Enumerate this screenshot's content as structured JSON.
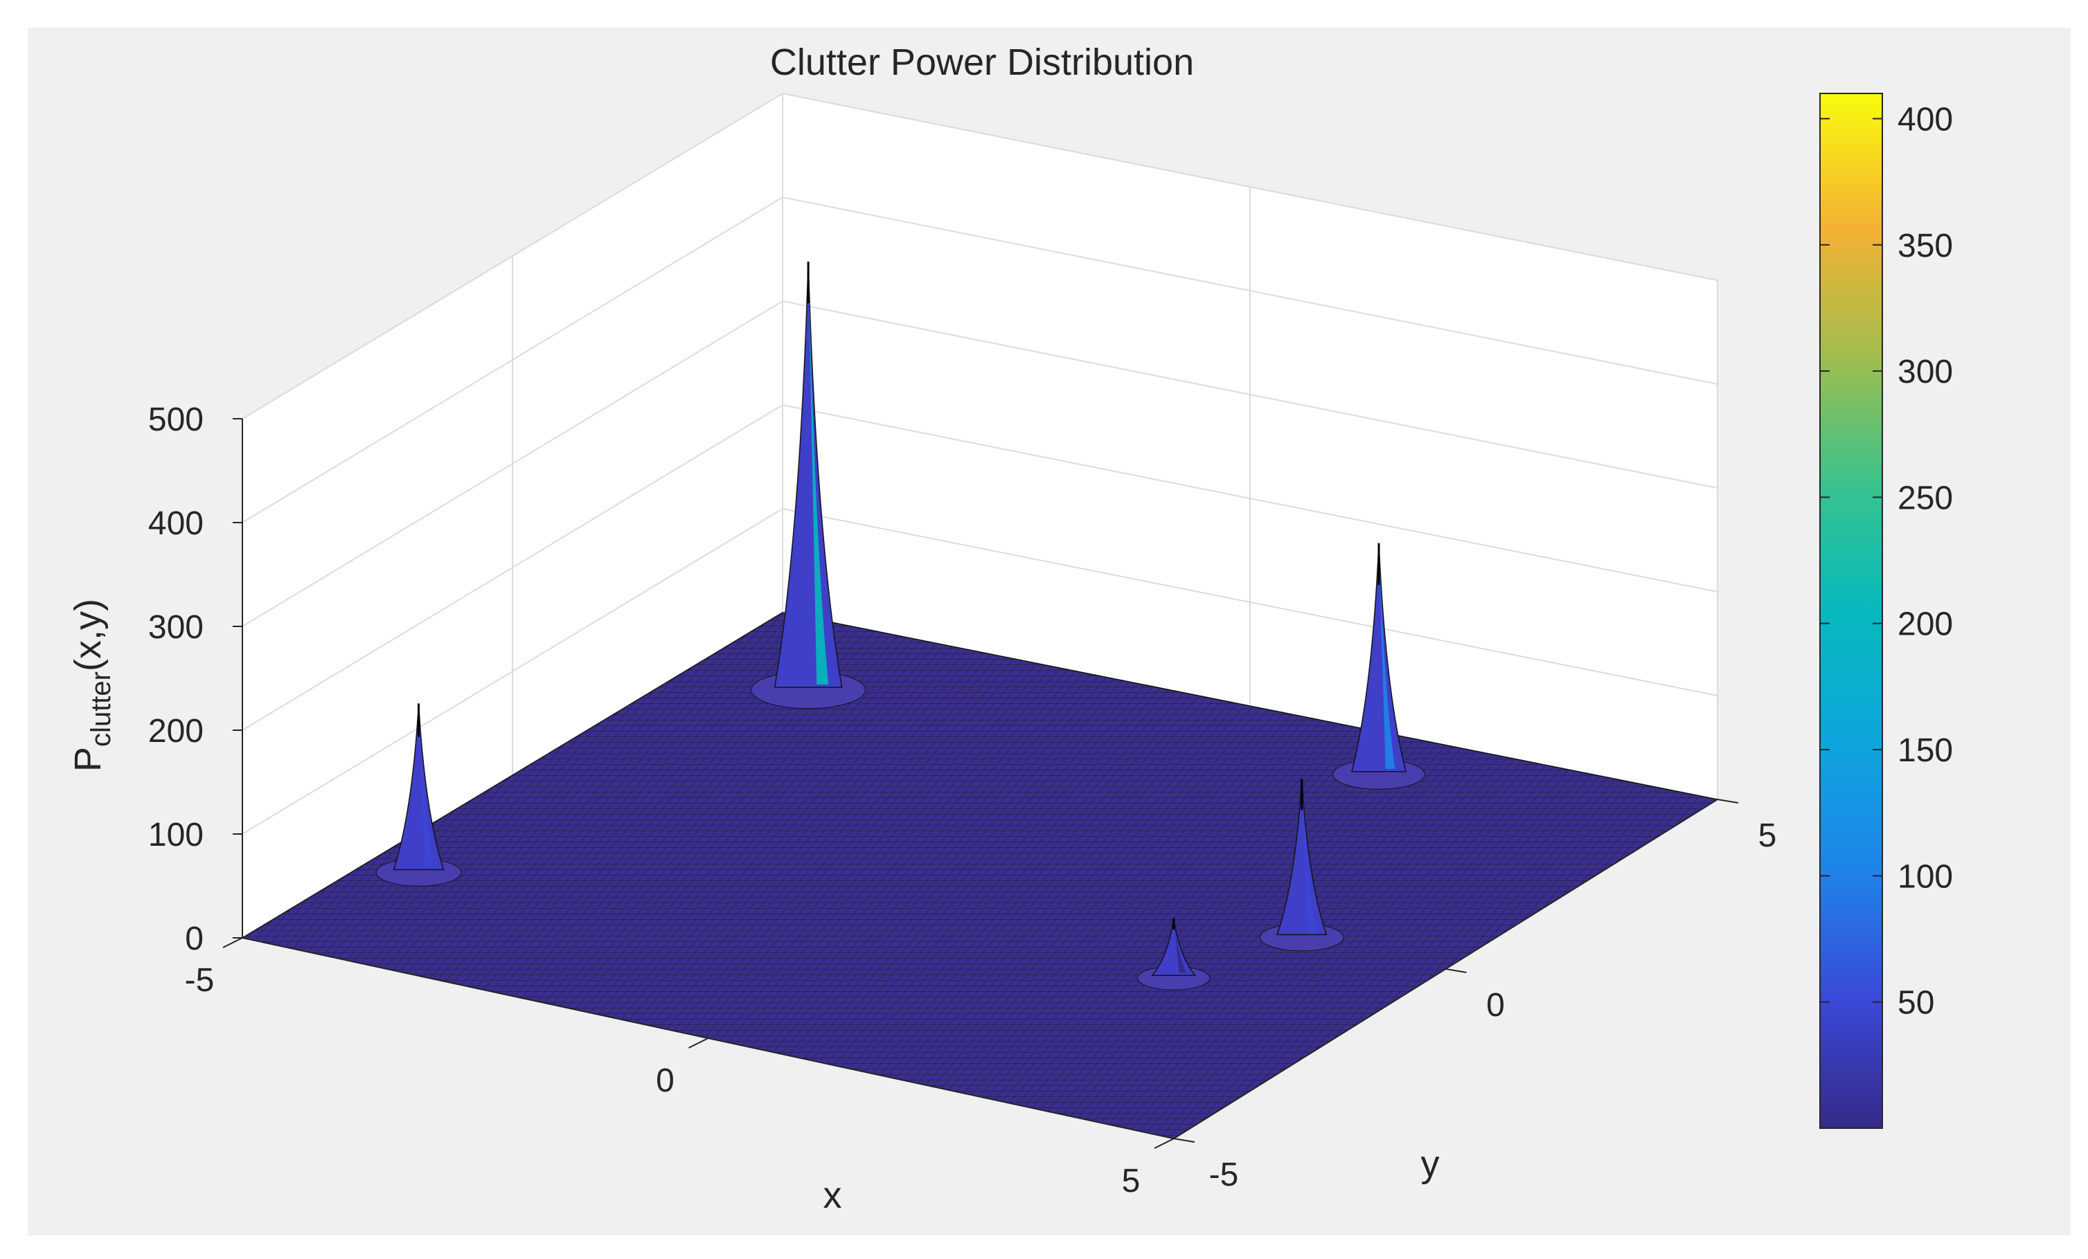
{
  "chart_data": {
    "type": "surface",
    "title": "Clutter Power Distribution",
    "xlabel": "x",
    "ylabel": "y",
    "zlabel": {
      "base": "P",
      "subscript": "clutter",
      "suffix": "(x,y)"
    },
    "xlim": [
      -5,
      5
    ],
    "ylim": [
      -5,
      5
    ],
    "zlim": [
      0,
      500
    ],
    "xticks": [
      "-5",
      "0",
      "5"
    ],
    "yticks": [
      "-5",
      "0",
      "5"
    ],
    "zticks": [
      "0",
      "100",
      "200",
      "300",
      "400",
      "500"
    ],
    "grid": true,
    "colormap": "parula",
    "colorbar": {
      "location": "right",
      "range": [
        0,
        410
      ],
      "ticks": [
        "50",
        "100",
        "150",
        "200",
        "250",
        "300",
        "350",
        "400"
      ]
    },
    "peaks": [
      {
        "x": -4.5,
        "y": -2.6,
        "z": 160
      },
      {
        "x": -3.8,
        "y": 3.4,
        "z": 410
      },
      {
        "x": 2.9,
        "y": -1.4,
        "z": 55
      },
      {
        "x": 3.4,
        "y": 0.1,
        "z": 150
      },
      {
        "x": 1.9,
        "y": 4.1,
        "z": 220
      }
    ],
    "colors": {
      "figure_bg": "#f0f0f0",
      "axes_bg": "#ffffff",
      "surface_low": "#352a87",
      "mesh": "#141414"
    }
  }
}
